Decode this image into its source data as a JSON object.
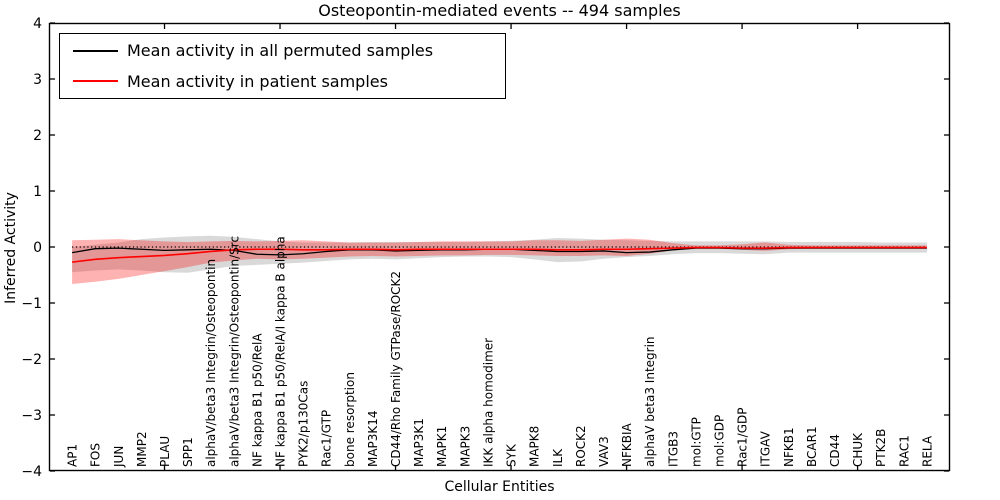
{
  "figure": {
    "title": "Osteopontin-mediated events -- 494 samples",
    "xlabel": "Cellular Entities",
    "ylabel": "Inferred Activity"
  },
  "legend": {
    "items": [
      {
        "label": "Mean activity in all permuted samples",
        "color": "#000000"
      },
      {
        "label": "Mean activity in patient samples",
        "color": "#ff0000"
      }
    ]
  },
  "chart_data": {
    "type": "line",
    "title": "Osteopontin-mediated events -- 494 samples",
    "xlabel": "Cellular Entities",
    "ylabel": "Inferred Activity",
    "ylim": [
      -4,
      4
    ],
    "xlim": [
      0,
      39
    ],
    "grid": false,
    "legend_position": "upper left",
    "ytick_values": [
      4,
      3,
      2,
      1,
      0,
      -1,
      -2,
      -3,
      -4
    ],
    "ytick_labels": [
      "4",
      "3",
      "2",
      "1",
      "0",
      "−1",
      "−2",
      "−3",
      "−4"
    ],
    "xtick_values": [
      5,
      10,
      15,
      20,
      25,
      30,
      35
    ],
    "reference_line": {
      "y": 0,
      "style": "dotted",
      "color": "#000000"
    },
    "categories": [
      "AP1",
      "FOS",
      "JUN",
      "MMP2",
      "PLAU",
      "SPP1",
      "alphaV/beta3 Integrin/Osteopontin",
      "alphaV/beta3 Integrin/Osteopontin/Src",
      "NF kappa B1 p50/RelA",
      "NF kappa B1 p50/RelA/I kappa B alpha",
      "PYK2/p130Cas",
      "Rac1/GTP",
      "bone resorption",
      "MAP3K14",
      "CD44/Rho Family GTPase/ROCK2",
      "MAP3K1",
      "MAPK1",
      "MAPK3",
      "IKK alpha homodimer",
      "SYK",
      "MAPK8",
      "ILK",
      "ROCK2",
      "VAV3",
      "NFKBIA",
      "alphaV beta3 Integrin",
      "ITGB3",
      "mol:GTP",
      "mol:GDP",
      "Rac1/GDP",
      "ITGAV",
      "NFKB1",
      "BCAR1",
      "CD44",
      "CHUK",
      "PTK2B",
      "RAC1",
      "RELA"
    ],
    "series": [
      {
        "name": "Mean activity in all permuted samples",
        "color": "#000000",
        "band_color": "rgba(0,0,0,0.15)",
        "values": [
          -0.1,
          -0.03,
          -0.02,
          -0.04,
          -0.06,
          -0.05,
          -0.04,
          -0.06,
          -0.13,
          -0.14,
          -0.12,
          -0.08,
          -0.05,
          -0.05,
          -0.07,
          -0.06,
          -0.05,
          -0.05,
          -0.04,
          -0.04,
          -0.06,
          -0.08,
          -0.08,
          -0.07,
          -0.1,
          -0.09,
          -0.05,
          -0.02,
          -0.02,
          -0.03,
          -0.03,
          -0.02,
          -0.02,
          -0.02,
          -0.02,
          -0.02,
          -0.02,
          -0.02
        ],
        "band_hi": [
          0.0,
          0.04,
          0.08,
          0.14,
          0.17,
          0.19,
          0.2,
          0.18,
          0.14,
          0.1,
          0.08,
          0.08,
          0.08,
          0.09,
          0.09,
          0.09,
          0.09,
          0.09,
          0.1,
          0.11,
          0.13,
          0.16,
          0.15,
          0.13,
          0.12,
          0.11,
          0.1,
          0.1,
          0.1,
          0.1,
          0.1,
          0.09,
          0.09,
          0.09,
          0.09,
          0.08,
          0.08,
          0.08
        ],
        "band_lo": [
          -0.45,
          -0.42,
          -0.4,
          -0.42,
          -0.45,
          -0.46,
          -0.4,
          -0.34,
          -0.32,
          -0.3,
          -0.28,
          -0.25,
          -0.22,
          -0.21,
          -0.22,
          -0.2,
          -0.18,
          -0.17,
          -0.17,
          -0.18,
          -0.22,
          -0.27,
          -0.26,
          -0.21,
          -0.18,
          -0.16,
          -0.13,
          -0.11,
          -0.11,
          -0.12,
          -0.13,
          -0.1,
          -0.1,
          -0.1,
          -0.1,
          -0.1,
          -0.1,
          -0.1
        ]
      },
      {
        "name": "Mean activity in patient samples",
        "color": "#ff0000",
        "band_color": "rgba(255,0,0,0.30)",
        "values": [
          -0.27,
          -0.22,
          -0.19,
          -0.17,
          -0.15,
          -0.12,
          -0.08,
          -0.05,
          -0.04,
          -0.04,
          -0.05,
          -0.05,
          -0.04,
          -0.04,
          -0.05,
          -0.04,
          -0.04,
          -0.04,
          -0.04,
          -0.04,
          -0.04,
          -0.05,
          -0.05,
          -0.04,
          -0.04,
          -0.03,
          -0.02,
          -0.01,
          -0.01,
          -0.02,
          -0.02,
          -0.01,
          -0.01,
          -0.01,
          -0.01,
          -0.01,
          -0.01,
          -0.01
        ],
        "band_hi": [
          0.12,
          0.13,
          0.14,
          0.12,
          0.1,
          0.09,
          0.1,
          0.11,
          0.1,
          0.11,
          0.12,
          0.1,
          0.08,
          0.08,
          0.08,
          0.09,
          0.1,
          0.1,
          0.1,
          0.1,
          0.12,
          0.12,
          0.11,
          0.13,
          0.15,
          0.13,
          0.07,
          0.03,
          0.03,
          0.05,
          0.08,
          0.04,
          0.03,
          0.03,
          0.03,
          0.03,
          0.03,
          0.03
        ],
        "band_lo": [
          -0.66,
          -0.62,
          -0.57,
          -0.5,
          -0.43,
          -0.36,
          -0.28,
          -0.24,
          -0.21,
          -0.22,
          -0.21,
          -0.19,
          -0.17,
          -0.16,
          -0.17,
          -0.16,
          -0.15,
          -0.15,
          -0.14,
          -0.14,
          -0.15,
          -0.16,
          -0.16,
          -0.15,
          -0.16,
          -0.12,
          -0.06,
          -0.03,
          -0.03,
          -0.05,
          -0.07,
          -0.04,
          -0.03,
          -0.03,
          -0.03,
          -0.03,
          -0.03,
          -0.03
        ]
      }
    ]
  }
}
